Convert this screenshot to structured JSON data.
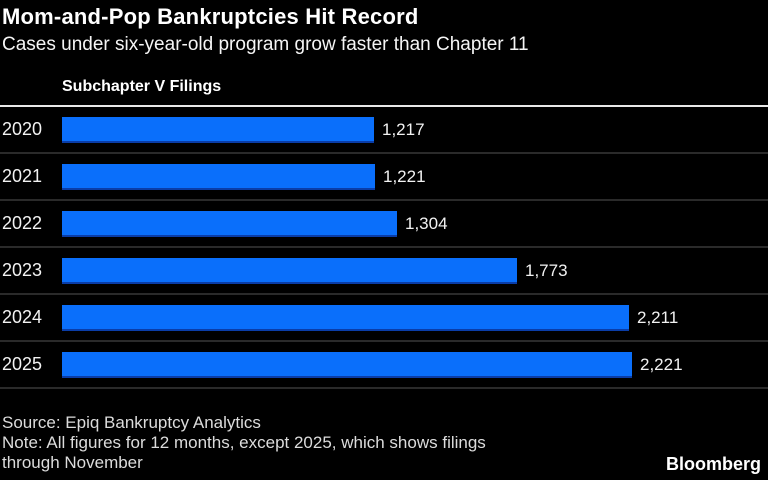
{
  "header": {
    "title": "Mom-and-Pop Bankruptcies Hit Record",
    "subtitle": "Cases under six-year-old program grow faster than Chapter 11"
  },
  "legend": {
    "label": "Subchapter V Filings"
  },
  "chart_data": {
    "type": "bar",
    "orientation": "horizontal",
    "title": "Subchapter V Filings",
    "categories": [
      "2020",
      "2021",
      "2022",
      "2023",
      "2024",
      "2025"
    ],
    "values": [
      1217,
      1221,
      1304,
      1773,
      2211,
      2221
    ],
    "value_labels": [
      "1,217",
      "1,221",
      "1,304",
      "1,773",
      "2,211",
      "2,221"
    ],
    "xlim": [
      0,
      2221
    ],
    "grid": false,
    "legend_position": "top-left",
    "bar_color": "#0a6ffb"
  },
  "footer": {
    "source": "Source: Epiq Bankruptcy Analytics",
    "note_line1": "Note: All figures for 12 months, except 2025, which shows filings",
    "note_line2": "through November",
    "brand": "Bloomberg"
  },
  "colors": {
    "background": "#000000",
    "bar": "#0a6ffb",
    "separator": "#2a2a2a",
    "top_rule": "#e9e9e9",
    "title_text": "#ffffff",
    "footer_text": "#dcdcdc"
  }
}
